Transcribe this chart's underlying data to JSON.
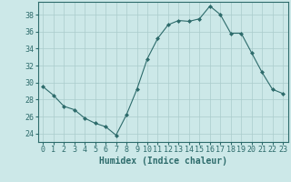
{
  "x": [
    0,
    1,
    2,
    3,
    4,
    5,
    6,
    7,
    8,
    9,
    10,
    11,
    12,
    13,
    14,
    15,
    16,
    17,
    18,
    19,
    20,
    21,
    22,
    23
  ],
  "y": [
    29.5,
    28.5,
    27.2,
    26.8,
    25.8,
    25.2,
    24.8,
    23.8,
    26.2,
    29.2,
    32.8,
    35.2,
    36.8,
    37.3,
    37.2,
    37.5,
    39.0,
    38.0,
    35.8,
    35.8,
    33.5,
    31.2,
    29.2,
    28.7
  ],
  "line_color": "#2d6b6b",
  "marker": "D",
  "marker_size": 2,
  "bg_color": "#cce8e8",
  "grid_color": "#aacccc",
  "xlabel": "Humidex (Indice chaleur)",
  "ylim": [
    23.0,
    39.5
  ],
  "xlim": [
    -0.5,
    23.5
  ],
  "yticks": [
    24,
    26,
    28,
    30,
    32,
    34,
    36,
    38
  ],
  "xticks": [
    0,
    1,
    2,
    3,
    4,
    5,
    6,
    7,
    8,
    9,
    10,
    11,
    12,
    13,
    14,
    15,
    16,
    17,
    18,
    19,
    20,
    21,
    22,
    23
  ],
  "xlabel_fontsize": 7,
  "tick_fontsize": 6,
  "tick_color": "#2d6b6b",
  "axis_color": "#2d6b6b"
}
